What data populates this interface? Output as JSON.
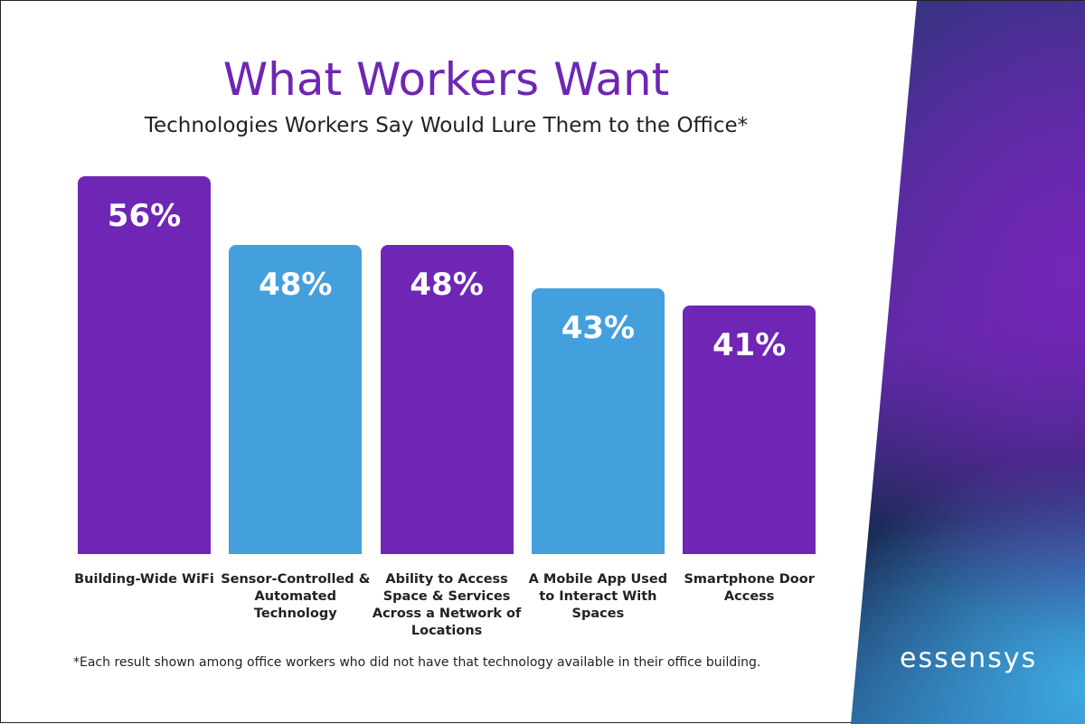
{
  "chart_data": {
    "type": "bar",
    "title": "What Workers Want",
    "subtitle": "Technologies Workers Say Would Lure Them to the Office*",
    "categories": [
      "Building-Wide WiFi",
      "Sensor-Controlled & Automated Technology",
      "Ability to Access Space & Services Across a Network of Locations",
      "A Mobile App Used to Interact With Spaces",
      "Smartphone Door Access"
    ],
    "values": [
      56,
      48,
      48,
      43,
      41
    ],
    "labels": [
      "56%",
      "48%",
      "48%",
      "43%",
      "41%"
    ],
    "colors": [
      "#6f26b4",
      "#449fdd",
      "#6f26b4",
      "#449fdd",
      "#6f26b4"
    ],
    "xlabel": "",
    "ylabel": "",
    "grid": false,
    "footnote": "*Each result shown among office workers who did not have that technology available in their office building."
  },
  "logo": "essensys"
}
